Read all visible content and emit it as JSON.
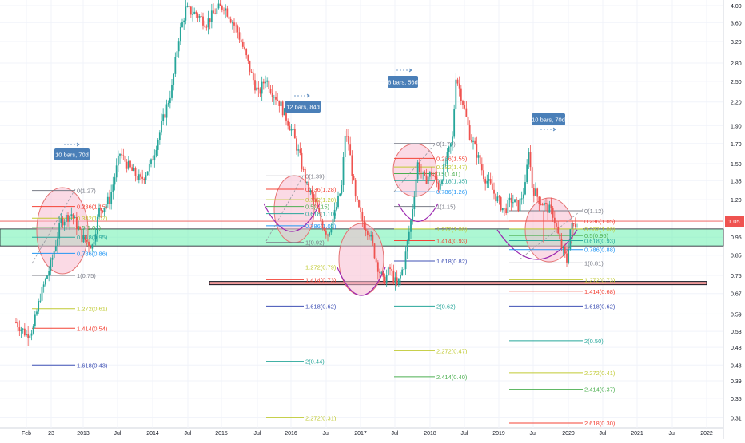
{
  "chart_data": {
    "type": "candlestick",
    "title": "",
    "scale": "log",
    "ylim": [
      0.28,
      4.2
    ],
    "y_ticks": [
      "4.00",
      "3.60",
      "3.20",
      "2.80",
      "2.50",
      "2.20",
      "1.90",
      "1.70",
      "1.50",
      "1.35",
      "1.20",
      "1.05",
      "0.95",
      "0.85",
      "0.75",
      "0.67",
      "0.59",
      "0.53",
      "0.48",
      "0.43",
      "0.39",
      "0.35",
      "0.31"
    ],
    "x_ticks": [
      "Feb",
      "23",
      "2013",
      "Jul",
      "2014",
      "Jul",
      "2015",
      "Jul",
      "2016",
      "Jul",
      "2017",
      "Jul",
      "2018",
      "Jul",
      "2019",
      "Jul",
      "2020",
      "Jul",
      "2021",
      "Jul",
      "2022"
    ],
    "current_price": {
      "label": "1.05",
      "value": 1.05,
      "color": "#ef5350"
    },
    "colors": {
      "up": "#26a69a",
      "down": "#ef5350",
      "ellipse_fill": "#f8bbd0",
      "zone_fill": "#69f0ae",
      "arc": "#9c27b0"
    },
    "support_zone": [
      0.9,
      1.0
    ],
    "support_line": 0.715,
    "fib_sets": [
      {
        "levels": [
          {
            "label": "0(1.27)",
            "value": 1.27,
            "color": "#787b86"
          },
          {
            "label": "0.236(1.15)",
            "value": 1.15,
            "color": "#f44336"
          },
          {
            "label": "0.382(1.07)",
            "value": 1.07,
            "color": "#c0ca33"
          },
          {
            "label": "0.5(1.01)",
            "value": 1.01,
            "color": "#4caf50"
          },
          {
            "label": "0.618(0.95)",
            "value": 0.95,
            "color": "#26a69a"
          },
          {
            "label": "0.786(0.86)",
            "value": 0.86,
            "color": "#2196f3"
          },
          {
            "label": "1(0.75)",
            "value": 0.75,
            "color": "#787b86"
          },
          {
            "label": "1.272(0.61)",
            "value": 0.61,
            "color": "#c0ca33"
          },
          {
            "label": "1.414(0.54)",
            "value": 0.54,
            "color": "#f44336"
          },
          {
            "label": "1.618(0.43)",
            "value": 0.43,
            "color": "#3f51b5"
          }
        ]
      },
      {
        "levels": [
          {
            "label": "0(1.39)",
            "value": 1.39,
            "color": "#787b86"
          },
          {
            "label": "0.236(1.28)",
            "value": 1.28,
            "color": "#f44336"
          },
          {
            "label": "0.382(1.20)",
            "value": 1.2,
            "color": "#c0ca33"
          },
          {
            "label": "0.5(1.15)",
            "value": 1.15,
            "color": "#4caf50"
          },
          {
            "label": "0.618(1.10)",
            "value": 1.1,
            "color": "#26a69a"
          },
          {
            "label": "0.786(1.02)",
            "value": 1.02,
            "color": "#2196f3"
          },
          {
            "label": "1(0.92)",
            "value": 0.92,
            "color": "#787b86"
          },
          {
            "label": "1.272(0.79)",
            "value": 0.79,
            "color": "#c0ca33"
          },
          {
            "label": "1.414(0.73)",
            "value": 0.73,
            "color": "#f44336"
          },
          {
            "label": "1.618(0.62)",
            "value": 0.62,
            "color": "#3f51b5"
          },
          {
            "label": "2(0.44)",
            "value": 0.44,
            "color": "#26a69a"
          },
          {
            "label": "2.272(0.31)",
            "value": 0.31,
            "color": "#c0ca33"
          }
        ]
      },
      {
        "levels": [
          {
            "label": "0(1.70)",
            "value": 1.7,
            "color": "#787b86"
          },
          {
            "label": "0.236(1.55)",
            "value": 1.55,
            "color": "#f44336"
          },
          {
            "label": "0.382(1.47)",
            "value": 1.47,
            "color": "#c0ca33"
          },
          {
            "label": "0.5(1.41)",
            "value": 1.41,
            "color": "#4caf50"
          },
          {
            "label": "0.618(1.35)",
            "value": 1.35,
            "color": "#26a69a"
          },
          {
            "label": "0.786(1.26)",
            "value": 1.26,
            "color": "#2196f3"
          },
          {
            "label": "1(1.15)",
            "value": 1.15,
            "color": "#787b86"
          },
          {
            "label": "1.272(1.00)",
            "value": 1.0,
            "color": "#c0ca33"
          },
          {
            "label": "1.414(0.93)",
            "value": 0.93,
            "color": "#f44336"
          },
          {
            "label": "1.618(0.82)",
            "value": 0.82,
            "color": "#3f51b5"
          },
          {
            "label": "2(0.62)",
            "value": 0.62,
            "color": "#26a69a"
          },
          {
            "label": "2.272(0.47)",
            "value": 0.47,
            "color": "#c0ca33"
          },
          {
            "label": "2.414(0.40)",
            "value": 0.4,
            "color": "#4caf50"
          }
        ]
      },
      {
        "levels": [
          {
            "label": "0(1.12)",
            "value": 1.12,
            "color": "#787b86"
          },
          {
            "label": "0.236(1.05)",
            "value": 1.05,
            "color": "#f44336"
          },
          {
            "label": "0.382(1.00)",
            "value": 1.0,
            "color": "#c0ca33"
          },
          {
            "label": "0.5(0.96)",
            "value": 0.96,
            "color": "#4caf50"
          },
          {
            "label": "0.618(0.93)",
            "value": 0.93,
            "color": "#26a69a"
          },
          {
            "label": "0.786(0.88)",
            "value": 0.88,
            "color": "#2196f3"
          },
          {
            "label": "1(0.81)",
            "value": 0.81,
            "color": "#787b86"
          },
          {
            "label": "1.272(0.73)",
            "value": 0.73,
            "color": "#c0ca33"
          },
          {
            "label": "1.414(0.68)",
            "value": 0.68,
            "color": "#f44336"
          },
          {
            "label": "1.618(0.62)",
            "value": 0.62,
            "color": "#3f51b5"
          },
          {
            "label": "2(0.50)",
            "value": 0.5,
            "color": "#26a69a"
          },
          {
            "label": "2.272(0.41)",
            "value": 0.41,
            "color": "#c0ca33"
          },
          {
            "label": "2.414(0.37)",
            "value": 0.37,
            "color": "#4caf50"
          },
          {
            "label": "2.618(0.30)",
            "value": 0.3,
            "color": "#f44336"
          }
        ]
      }
    ],
    "annotations": [
      {
        "text": "10 bars, 70d",
        "color": "#4a7fb8"
      },
      {
        "text": "12 bars, 84d",
        "color": "#4a7fb8"
      },
      {
        "text": "8 bars, 56d",
        "color": "#4a7fb8"
      },
      {
        "text": "10 bars, 70d",
        "color": "#4a7fb8"
      }
    ],
    "price_path": [
      {
        "x": 0,
        "y": 0.56
      },
      {
        "x": 6,
        "y": 0.52
      },
      {
        "x": 10,
        "y": 0.54
      },
      {
        "x": 14,
        "y": 0.66
      },
      {
        "x": 20,
        "y": 0.8
      },
      {
        "x": 26,
        "y": 1.05
      },
      {
        "x": 32,
        "y": 1.1
      },
      {
        "x": 38,
        "y": 0.95
      },
      {
        "x": 44,
        "y": 0.9
      },
      {
        "x": 48,
        "y": 1.12
      },
      {
        "x": 54,
        "y": 1.2
      },
      {
        "x": 60,
        "y": 1.6
      },
      {
        "x": 66,
        "y": 1.45
      },
      {
        "x": 72,
        "y": 1.35
      },
      {
        "x": 78,
        "y": 1.5
      },
      {
        "x": 84,
        "y": 1.9
      },
      {
        "x": 90,
        "y": 2.4
      },
      {
        "x": 94,
        "y": 3.3
      },
      {
        "x": 98,
        "y": 3.9
      },
      {
        "x": 104,
        "y": 3.8
      },
      {
        "x": 110,
        "y": 3.6
      },
      {
        "x": 116,
        "y": 3.9
      },
      {
        "x": 120,
        "y": 4.0
      },
      {
        "x": 124,
        "y": 3.7
      },
      {
        "x": 128,
        "y": 3.4
      },
      {
        "x": 132,
        "y": 3.0
      },
      {
        "x": 136,
        "y": 2.6
      },
      {
        "x": 140,
        "y": 2.3
      },
      {
        "x": 144,
        "y": 2.55
      },
      {
        "x": 148,
        "y": 2.35
      },
      {
        "x": 152,
        "y": 2.2
      },
      {
        "x": 156,
        "y": 2.0
      },
      {
        "x": 160,
        "y": 1.8
      },
      {
        "x": 164,
        "y": 1.55
      },
      {
        "x": 168,
        "y": 1.3
      },
      {
        "x": 172,
        "y": 1.2
      },
      {
        "x": 176,
        "y": 1.05
      },
      {
        "x": 180,
        "y": 0.97
      },
      {
        "x": 184,
        "y": 1.1
      },
      {
        "x": 188,
        "y": 1.3
      },
      {
        "x": 190,
        "y": 1.8
      },
      {
        "x": 192,
        "y": 1.7
      },
      {
        "x": 196,
        "y": 1.2
      },
      {
        "x": 200,
        "y": 1.05
      },
      {
        "x": 204,
        "y": 0.98
      },
      {
        "x": 208,
        "y": 0.82
      },
      {
        "x": 212,
        "y": 0.72
      },
      {
        "x": 216,
        "y": 0.78
      },
      {
        "x": 220,
        "y": 0.7
      },
      {
        "x": 224,
        "y": 0.8
      },
      {
        "x": 228,
        "y": 1.05
      },
      {
        "x": 232,
        "y": 1.5
      },
      {
        "x": 236,
        "y": 1.35
      },
      {
        "x": 240,
        "y": 1.42
      },
      {
        "x": 244,
        "y": 1.3
      },
      {
        "x": 248,
        "y": 1.5
      },
      {
        "x": 252,
        "y": 1.75
      },
      {
        "x": 254,
        "y": 2.6
      },
      {
        "x": 258,
        "y": 2.2
      },
      {
        "x": 262,
        "y": 1.8
      },
      {
        "x": 266,
        "y": 1.6
      },
      {
        "x": 270,
        "y": 1.4
      },
      {
        "x": 274,
        "y": 1.3
      },
      {
        "x": 278,
        "y": 1.2
      },
      {
        "x": 282,
        "y": 1.12
      },
      {
        "x": 286,
        "y": 1.2
      },
      {
        "x": 290,
        "y": 1.15
      },
      {
        "x": 294,
        "y": 1.3
      },
      {
        "x": 296,
        "y": 1.65
      },
      {
        "x": 298,
        "y": 1.3
      },
      {
        "x": 302,
        "y": 1.2
      },
      {
        "x": 306,
        "y": 1.15
      },
      {
        "x": 310,
        "y": 1.1
      },
      {
        "x": 314,
        "y": 0.92
      },
      {
        "x": 318,
        "y": 0.82
      },
      {
        "x": 320,
        "y": 1.0
      },
      {
        "x": 324,
        "y": 1.05
      }
    ]
  }
}
